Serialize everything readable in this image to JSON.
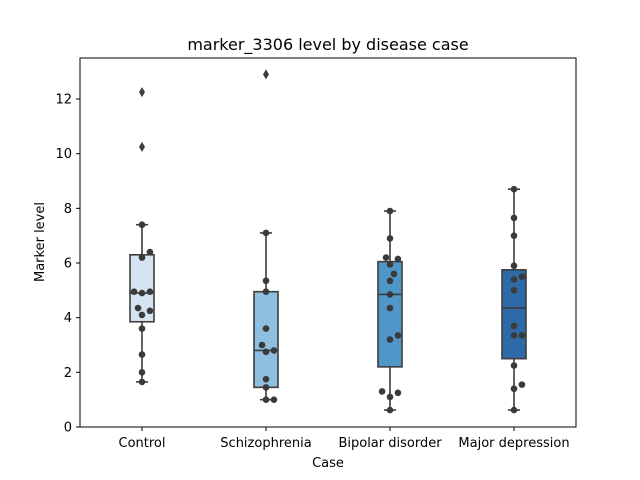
{
  "chart_data": {
    "type": "box",
    "title": "marker_3306 level by disease case",
    "xlabel": "Case",
    "ylabel": "Marker level",
    "ylim": [
      0,
      13.5
    ],
    "yticks": [
      0,
      2,
      4,
      6,
      8,
      10,
      12
    ],
    "grid": false,
    "categories": [
      "Control",
      "Schizophrenia",
      "Bipolar disorder",
      "Major depression"
    ],
    "colors": [
      "#d4e4f3",
      "#8fbfe0",
      "#5096c8",
      "#2e6aa8"
    ],
    "edge_color": "#3d3d3d",
    "box_stats": [
      {
        "whisker_low": 1.65,
        "q1": 3.85,
        "median": 4.9,
        "q3": 6.3,
        "whisker_high": 7.4
      },
      {
        "whisker_low": 1.0,
        "q1": 1.45,
        "median": 2.8,
        "q3": 4.95,
        "whisker_high": 7.1
      },
      {
        "whisker_low": 0.62,
        "q1": 2.2,
        "median": 4.85,
        "q3": 6.05,
        "whisker_high": 7.9
      },
      {
        "whisker_low": 0.62,
        "q1": 2.5,
        "median": 4.35,
        "q3": 5.75,
        "whisker_high": 8.7
      }
    ],
    "outliers": [
      [
        12.25,
        10.25
      ],
      [
        12.9
      ],
      [],
      []
    ],
    "points": [
      [
        1.65,
        2.0,
        2.65,
        3.6,
        4.1,
        4.25,
        4.35,
        4.9,
        4.95,
        4.95,
        6.2,
        6.4,
        7.4
      ],
      [
        1.0,
        1.0,
        1.45,
        1.75,
        2.75,
        2.8,
        3.0,
        3.6,
        4.95,
        5.35,
        7.1
      ],
      [
        0.62,
        1.1,
        1.25,
        1.3,
        3.2,
        3.35,
        4.35,
        4.85,
        5.35,
        5.6,
        5.95,
        6.15,
        6.2,
        6.9,
        7.9
      ],
      [
        0.62,
        1.4,
        1.55,
        2.25,
        3.35,
        3.35,
        3.7,
        5.0,
        5.4,
        5.5,
        5.9,
        7.0,
        7.65,
        8.7
      ]
    ]
  }
}
